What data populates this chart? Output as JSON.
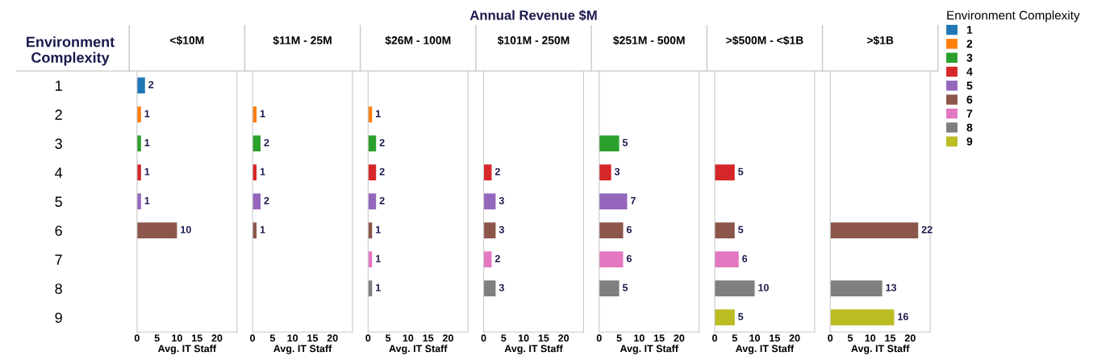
{
  "chart_data": [
    {
      "type": "bar",
      "orientation": "horizontal",
      "title": "<$10M",
      "xlabel": "Avg. IT Staff",
      "ylabel": "Environment Complexity",
      "annotations": [
        "Annual Revenue $M"
      ],
      "categories": [
        "1",
        "2",
        "3",
        "4",
        "5",
        "6",
        "7",
        "8",
        "9"
      ],
      "values": [
        2,
        1,
        1,
        1,
        1,
        10,
        null,
        null,
        null
      ],
      "colors": [
        "#1f77b4",
        "#ff7f0e",
        "#2ca02c",
        "#d62728",
        "#9467bd",
        "#8c564b",
        "#e377c2",
        "#7f7f7f",
        "#bcbd22"
      ],
      "xlim": [
        0,
        25
      ],
      "xticks": [
        0,
        5,
        10,
        15,
        20
      ],
      "data_labels": true,
      "grid": false
    },
    {
      "type": "bar",
      "orientation": "horizontal",
      "title": "$11M - 25M",
      "xlabel": "Avg. IT Staff",
      "categories": [
        "1",
        "2",
        "3",
        "4",
        "5",
        "6",
        "7",
        "8",
        "9"
      ],
      "values": [
        null,
        1,
        2,
        1,
        2,
        1,
        null,
        null,
        null
      ],
      "colors": [
        "#1f77b4",
        "#ff7f0e",
        "#2ca02c",
        "#d62728",
        "#9467bd",
        "#8c564b",
        "#e377c2",
        "#7f7f7f",
        "#bcbd22"
      ],
      "xlim": [
        0,
        25
      ],
      "xticks": [
        0,
        5,
        10,
        15,
        20
      ],
      "data_labels": true,
      "tick_labels": "x",
      "grid": false
    },
    {
      "type": "bar",
      "orientation": "horizontal",
      "title": "$26M - 100M",
      "xlabel": "Avg. IT Staff",
      "categories": [
        "1",
        "2",
        "3",
        "4",
        "5",
        "6",
        "7",
        "8",
        "9"
      ],
      "values": [
        null,
        1,
        2,
        2,
        2,
        1,
        1,
        1,
        null
      ],
      "colors": [
        "#1f77b4",
        "#ff7f0e",
        "#2ca02c",
        "#d62728",
        "#9467bd",
        "#8c564b",
        "#e377c2",
        "#7f7f7f",
        "#bcbd22"
      ],
      "xlim": [
        0,
        25
      ],
      "xticks": [
        0,
        5,
        10,
        15,
        20
      ],
      "data_labels": true,
      "tick_labels": "x",
      "grid": false
    },
    {
      "type": "bar",
      "orientation": "horizontal",
      "title": "$101M - 250M",
      "xlabel": "Avg. IT Staff",
      "categories": [
        "1",
        "2",
        "3",
        "4",
        "5",
        "6",
        "7",
        "8",
        "9"
      ],
      "values": [
        null,
        null,
        null,
        2,
        3,
        3,
        2,
        3,
        null
      ],
      "colors": [
        "#1f77b4",
        "#ff7f0e",
        "#2ca02c",
        "#d62728",
        "#9467bd",
        "#8c564b",
        "#e377c2",
        "#7f7f7f",
        "#bcbd22"
      ],
      "xlim": [
        0,
        25
      ],
      "xticks": [
        0,
        5,
        10,
        15,
        20
      ],
      "data_labels": true,
      "tick_labels": "x",
      "grid": false
    },
    {
      "type": "bar",
      "orientation": "horizontal",
      "title": "$251M - 500M",
      "xlabel": "Avg. IT Staff",
      "categories": [
        "1",
        "2",
        "3",
        "4",
        "5",
        "6",
        "7",
        "8",
        "9"
      ],
      "values": [
        null,
        null,
        5,
        3,
        7,
        6,
        6,
        5,
        null
      ],
      "colors": [
        "#1f77b4",
        "#ff7f0e",
        "#2ca02c",
        "#d62728",
        "#9467bd",
        "#8c564b",
        "#e377c2",
        "#7f7f7f",
        "#bcbd22"
      ],
      "xlim": [
        0,
        25
      ],
      "xticks": [
        0,
        5,
        10,
        15,
        20
      ],
      "data_labels": true,
      "tick_labels": "x",
      "grid": false
    },
    {
      "type": "bar",
      "orientation": "horizontal",
      "title": ">$500M - <$1B",
      "xlabel": "Avg. IT Staff",
      "categories": [
        "1",
        "2",
        "3",
        "4",
        "5",
        "6",
        "7",
        "8",
        "9"
      ],
      "values": [
        null,
        null,
        null,
        5,
        null,
        5,
        6,
        10,
        5
      ],
      "colors": [
        "#1f77b4",
        "#ff7f0e",
        "#2ca02c",
        "#d62728",
        "#9467bd",
        "#8c564b",
        "#e377c2",
        "#7f7f7f",
        "#bcbd22"
      ],
      "xlim": [
        0,
        25
      ],
      "xticks": [
        0,
        5,
        10,
        15,
        20
      ],
      "data_labels": true,
      "tick_labels": "x",
      "grid": false
    },
    {
      "type": "bar",
      "orientation": "horizontal",
      "title": ">$1B",
      "xlabel": "Avg. IT Staff",
      "legend_title": "Environment Complexity",
      "categories": [
        "1",
        "2",
        "3",
        "4",
        "5",
        "6",
        "7",
        "8",
        "9"
      ],
      "values": [
        null,
        null,
        null,
        null,
        null,
        22,
        null,
        13,
        16
      ],
      "colors": [
        "#1f77b4",
        "#ff7f0e",
        "#2ca02c",
        "#d62728",
        "#9467bd",
        "#8c564b",
        "#e377c2",
        "#7f7f7f",
        "#bcbd22"
      ],
      "xlim": [
        0,
        25
      ],
      "xticks": [
        0,
        5,
        10,
        15,
        20
      ],
      "data_labels": true,
      "tick_labels": "x",
      "grid": false
    }
  ]
}
